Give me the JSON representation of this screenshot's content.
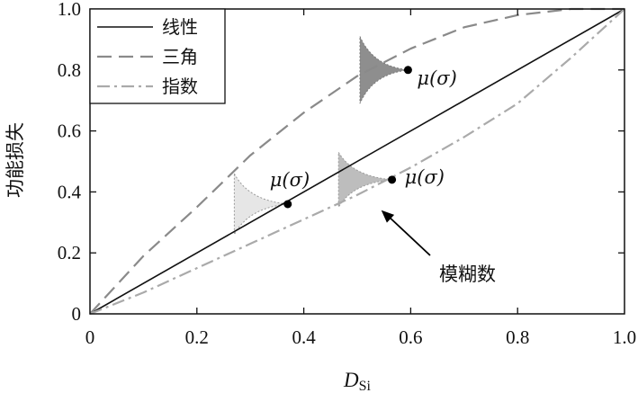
{
  "chart_data": {
    "type": "line",
    "xlabel_main": "D",
    "xlabel_sub": "Si",
    "ylabel": "功能损失",
    "xlim": [
      0,
      1
    ],
    "ylim": [
      0,
      1
    ],
    "xticks": [
      "0",
      "0.2",
      "0.4",
      "0.6",
      "0.8",
      "1.0"
    ],
    "yticks": [
      "0",
      "0.2",
      "0.4",
      "0.6",
      "0.8",
      "1.0"
    ],
    "legend_position": "top-left",
    "series": [
      {
        "name": "线性",
        "style": "solid",
        "color": "#111111",
        "x": [
          0,
          1
        ],
        "y": [
          0,
          1
        ]
      },
      {
        "name": "三角",
        "style": "dashed",
        "color": "#8a8a8a",
        "x": [
          0,
          0.1,
          0.2,
          0.3,
          0.4,
          0.5,
          0.6,
          0.7,
          0.8,
          0.9,
          1.0
        ],
        "y": [
          0,
          0.19,
          0.35,
          0.52,
          0.66,
          0.78,
          0.87,
          0.94,
          0.98,
          1.0,
          1.0
        ]
      },
      {
        "name": "指数",
        "style": "dashdot",
        "color": "#aaaaaa",
        "x": [
          0,
          0.1,
          0.2,
          0.3,
          0.4,
          0.5,
          0.6,
          0.7,
          0.8,
          0.9,
          1.0
        ],
        "y": [
          0,
          0.07,
          0.15,
          0.23,
          0.31,
          0.39,
          0.48,
          0.58,
          0.69,
          0.84,
          1.0
        ]
      }
    ],
    "fuzzy_markers": [
      {
        "label": "μ(σ)",
        "x": 0.37,
        "y": 0.36,
        "fill": "#e6e6e6",
        "edge": "#9a9a9a",
        "spread": 0.1,
        "width": 0.1
      },
      {
        "label": "μ(σ)",
        "x": 0.565,
        "y": 0.44,
        "fill": "#bdbdbd",
        "edge": "#9a9a9a",
        "spread": 0.09,
        "width": 0.1
      },
      {
        "label": "μ(σ)",
        "x": 0.595,
        "y": 0.8,
        "fill": "#8e8e8e",
        "edge": "#7a7a7a",
        "spread": 0.11,
        "width": 0.09
      }
    ],
    "annotation": {
      "text": "模糊数",
      "arrow_to": [
        0.545,
        0.34
      ]
    }
  }
}
